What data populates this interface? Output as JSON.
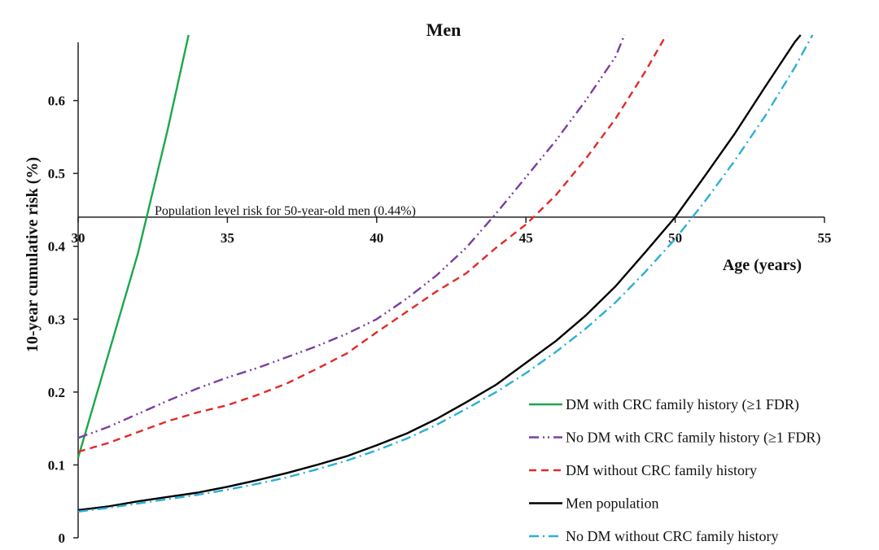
{
  "chart_data": {
    "type": "line",
    "title": "Men",
    "xlabel": "Age (years)",
    "ylabel": "10-year cumulative risk (%)",
    "xlim": [
      30,
      55
    ],
    "ylim": [
      0,
      0.69
    ],
    "x_ticks": [
      "30",
      "35",
      "40",
      "45",
      "50",
      "55"
    ],
    "y_ticks": [
      "0",
      "0.1",
      "0.2",
      "0.3",
      "0.4",
      "0.5",
      "0.6"
    ],
    "x_axis_crosses_y": 0.44,
    "reference_line": {
      "y": 0.44,
      "label": "Population level risk for 50-year-old men (0.44%)"
    },
    "legend_position": "bottom-right",
    "series": [
      {
        "name": "DM with CRC family history (≥1 FDR)",
        "color": "#1aa84a",
        "dash": "solid",
        "x": [
          30,
          31,
          32,
          33,
          33.7
        ],
        "y": [
          0.11,
          0.25,
          0.39,
          0.56,
          0.69
        ]
      },
      {
        "name": "No DM with CRC family history (≥1 FDR)",
        "color": "#7a3ea1",
        "dash": "dash-dot-dot",
        "x": [
          30,
          31,
          32,
          33,
          34,
          35,
          36,
          37,
          38,
          39,
          40,
          41,
          42,
          43,
          44,
          45,
          46,
          47,
          48,
          48.3
        ],
        "y": [
          0.137,
          0.152,
          0.17,
          0.188,
          0.205,
          0.22,
          0.233,
          0.248,
          0.263,
          0.28,
          0.3,
          0.328,
          0.36,
          0.398,
          0.445,
          0.495,
          0.545,
          0.6,
          0.66,
          0.69
        ]
      },
      {
        "name": "DM without CRC family history",
        "color": "#e02b27",
        "dash": "dashed",
        "x": [
          30,
          31,
          32,
          33,
          34,
          35,
          36,
          37,
          38,
          39,
          40,
          41,
          42,
          43,
          44,
          45,
          46,
          47,
          48,
          49,
          49.7
        ],
        "y": [
          0.118,
          0.13,
          0.145,
          0.16,
          0.172,
          0.182,
          0.196,
          0.212,
          0.232,
          0.253,
          0.282,
          0.31,
          0.338,
          0.363,
          0.398,
          0.43,
          0.47,
          0.52,
          0.575,
          0.64,
          0.69
        ]
      },
      {
        "name": "Men population",
        "color": "#000000",
        "dash": "solid",
        "x": [
          30,
          31,
          32,
          33,
          34,
          35,
          36,
          37,
          38,
          39,
          40,
          41,
          42,
          43,
          44,
          45,
          46,
          47,
          48,
          49,
          50,
          51,
          52,
          53,
          54,
          54.2
        ],
        "y": [
          0.038,
          0.043,
          0.05,
          0.056,
          0.062,
          0.07,
          0.079,
          0.089,
          0.1,
          0.112,
          0.127,
          0.143,
          0.163,
          0.186,
          0.21,
          0.24,
          0.27,
          0.305,
          0.345,
          0.392,
          0.44,
          0.497,
          0.555,
          0.618,
          0.68,
          0.69
        ]
      },
      {
        "name": "No DM without CRC family history",
        "color": "#2ab0d8",
        "dash": "dash-dot",
        "x": [
          30,
          31,
          32,
          33,
          34,
          35,
          36,
          37,
          38,
          39,
          40,
          41,
          42,
          43,
          44,
          45,
          46,
          47,
          48,
          49,
          50,
          51,
          52,
          53,
          54,
          54.6
        ],
        "y": [
          0.036,
          0.041,
          0.047,
          0.053,
          0.059,
          0.066,
          0.074,
          0.083,
          0.094,
          0.106,
          0.12,
          0.136,
          0.155,
          0.177,
          0.2,
          0.226,
          0.255,
          0.287,
          0.323,
          0.365,
          0.41,
          0.462,
          0.518,
          0.578,
          0.645,
          0.69
        ]
      }
    ]
  }
}
